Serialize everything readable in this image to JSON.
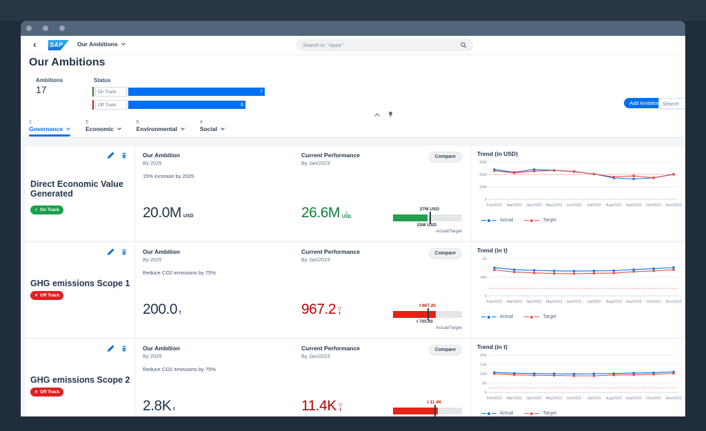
{
  "shell": {
    "back": "‹",
    "logo": "SAP",
    "app_title": "Our Ambitions",
    "search_placeholder": "Search in: \"Apps\""
  },
  "header": {
    "page_title": "Our Ambitions",
    "ambitions_label": "Ambitions",
    "ambitions_count": "17",
    "status_label": "Status",
    "bars_max": 7,
    "bar_color": "#0070f2",
    "status_bars": [
      {
        "label": "On Track",
        "value": 7,
        "display": "7",
        "tick_color": "#2b7d2b"
      },
      {
        "label": "Off Track",
        "value": 6,
        "display": "6",
        "tick_color": "#d01414"
      }
    ],
    "add_button": "Add Ambition",
    "toolbar_search_placeholder": "Search",
    "tabs": [
      {
        "count": "2",
        "label": "Governance",
        "active": true
      },
      {
        "count": "5",
        "label": "Economic",
        "active": false
      },
      {
        "count": "6",
        "label": "Environmental",
        "active": false
      },
      {
        "count": "4",
        "label": "Social",
        "active": false
      }
    ]
  },
  "labels": {
    "our_ambition": "Our Ambition",
    "current_performance": "Current Performance",
    "compare": "Compare",
    "actual_target": "Actual/Target"
  },
  "rows": [
    {
      "title": "Direct Economic Value Generated",
      "status": {
        "label": "On Track",
        "color": "#17a349",
        "icon": "✓"
      },
      "ambition": {
        "by": "By 2025",
        "desc": "15% increase by 2025",
        "value": "20.0M",
        "unit": "USD"
      },
      "performance": {
        "by": "By Jan/2023",
        "value": "26.6M",
        "unit": "USD",
        "arrow": "△",
        "value_color": "#107e3e",
        "bullet": {
          "top_label": "27M USD",
          "bottom_label": "25M USD",
          "top_color": "#2b3a49",
          "fill_pct": 50,
          "marker_pct": 53,
          "fill_color": "#21a04d"
        }
      }
    },
    {
      "title": "GHG emissions Scope 1",
      "status": {
        "label": "Off Track",
        "color": "#e02020",
        "icon": "✕"
      },
      "ambition": {
        "by": "By 2025",
        "desc": "Reduce CO2 emissions by 75%",
        "value": "200.0",
        "unit": "t"
      },
      "performance": {
        "by": "By Jan/2023",
        "value": "967.2",
        "unit": "t",
        "arrow": "▽",
        "value_color": "#bb0000",
        "bullet": {
          "top_label": "t 967.20",
          "bottom_label": "t 705.00",
          "top_color": "#cc1800",
          "fill_pct": 62,
          "marker_pct": 50,
          "fill_color": "#e42217"
        }
      }
    },
    {
      "title": "GHG emissions Scope 2",
      "status": {
        "label": "Off Track",
        "color": "#e02020",
        "icon": "✕"
      },
      "ambition": {
        "by": "By 2025",
        "desc": "Reduce CO2 emissions by 75%",
        "value": "2.8K",
        "unit": "t"
      },
      "performance": {
        "by": "By Jan/2023",
        "value": "11.4K",
        "unit": "t",
        "arrow": "▽",
        "value_color": "#bb0000",
        "bullet": {
          "top_label": "t 11.4K",
          "bottom_label": "",
          "top_color": "#cc1800",
          "fill_pct": 65,
          "marker_pct": 60,
          "fill_color": "#e42217"
        }
      }
    }
  ],
  "chart_data": [
    {
      "type": "line",
      "title": "Trend (in USD)",
      "categories": [
        "Feb/2022",
        "Mar/2022",
        "Apr/2022",
        "May/2022",
        "Jun/2022",
        "Jul/2022",
        "Aug/2022",
        "Sep/2022",
        "Oct/2022",
        "Nov/2022"
      ],
      "series": [
        {
          "name": "Actual",
          "color": "#0070f2",
          "marker": "circle",
          "values": [
            24.0,
            21.8,
            24.0,
            23.3,
            22.5,
            20.4,
            17.2,
            16.4,
            17.2,
            20.2
          ]
        },
        {
          "name": "Target",
          "color": "#e45041",
          "marker": "square",
          "values": [
            23.0,
            21.3,
            22.6,
            23.2,
            22.2,
            20.4,
            18.0,
            18.8,
            17.4,
            20.0
          ]
        }
      ],
      "ylim": [
        0,
        30
      ],
      "yticks": [
        {
          "v": 0,
          "label": "0"
        },
        {
          "v": 10,
          "label": "10M"
        },
        {
          "v": 20,
          "label": "20M"
        },
        {
          "v": 30,
          "label": "30M"
        }
      ],
      "ref": 20,
      "ref_color": "#e45041",
      "grid": true,
      "legend_position": "bottom-left"
    },
    {
      "type": "line",
      "title": "Trend (in t)",
      "categories": [
        "Feb/2022",
        "Mar/2022",
        "Apr/2022",
        "May/2022",
        "Jun/2022",
        "Jul/2022",
        "Aug/2022",
        "Sep/2022",
        "Oct/2022",
        "Nov/2022"
      ],
      "series": [
        {
          "name": "Actual",
          "color": "#0070f2",
          "marker": "circle",
          "values": [
            755,
            705,
            685,
            670,
            665,
            670,
            675,
            705,
            730,
            760
          ]
        },
        {
          "name": "Target",
          "color": "#e45041",
          "marker": "square",
          "values": [
            695,
            640,
            615,
            600,
            595,
            605,
            610,
            650,
            670,
            700
          ]
        }
      ],
      "ylim": [
        0,
        1000
      ],
      "yticks": [
        {
          "v": 0,
          "label": "0"
        },
        {
          "v": 500,
          "label": "500"
        },
        {
          "v": 1000,
          "label": "1K"
        }
      ],
      "ref": 200,
      "ref_color": "#e45041",
      "grid": true,
      "legend_position": "bottom-left"
    },
    {
      "type": "line",
      "title": "Trend (in t)",
      "categories": [
        "Feb/2022",
        "Mar/2022",
        "Apr/2022",
        "May/2022",
        "Jun/2022",
        "Jul/2022",
        "Aug/2022",
        "Sep/2022",
        "Oct/2022",
        "Nov/2022"
      ],
      "series": [
        {
          "name": "Actual",
          "color": "#0070f2",
          "marker": "circle",
          "values": [
            10700,
            10300,
            10100,
            10000,
            9900,
            10000,
            10100,
            10400,
            10600,
            11000
          ]
        },
        {
          "name": "Target",
          "color": "#e45041",
          "marker": "square",
          "values": [
            10000,
            9400,
            9200,
            9100,
            8900,
            8900,
            9300,
            9400,
            9700,
            10200
          ]
        }
      ],
      "ylim": [
        0,
        20000
      ],
      "yticks": [
        {
          "v": 0,
          "label": "0"
        },
        {
          "v": 5000,
          "label": "5K"
        },
        {
          "v": 10000,
          "label": "10K"
        },
        {
          "v": 15000,
          "label": "15K"
        },
        {
          "v": 20000,
          "label": "20K"
        }
      ],
      "ref": 2500,
      "ref_color": "#e45041",
      "grid": true,
      "legend_position": "bottom-left"
    }
  ]
}
